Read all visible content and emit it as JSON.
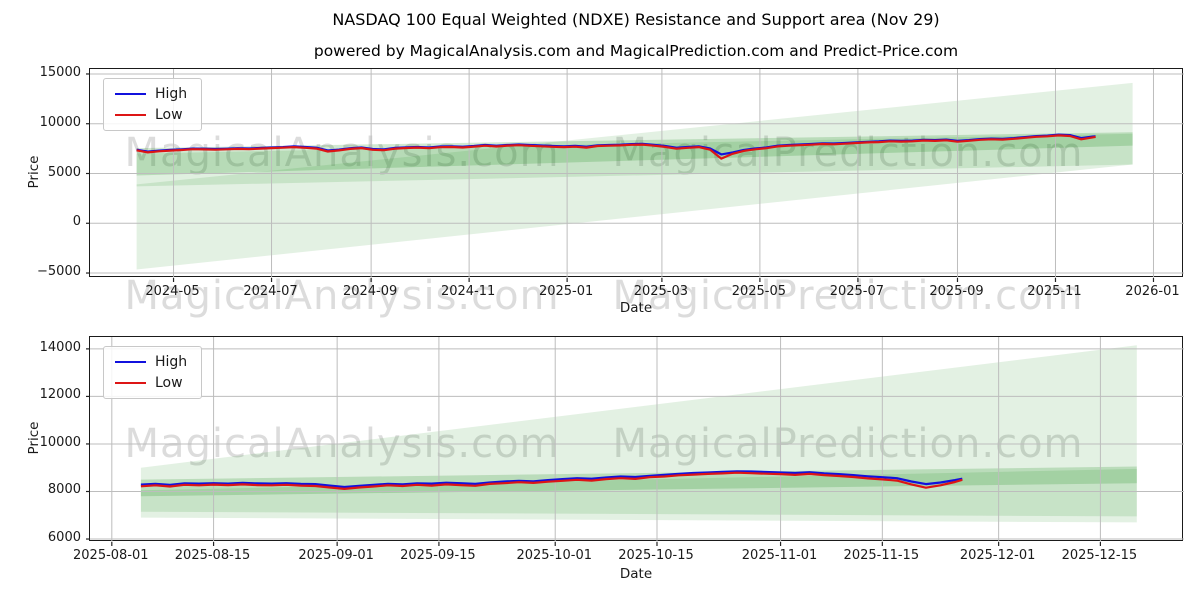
{
  "title": "NASDAQ 100 Equal Weighted (NDXE) Resistance and Support area (Nov 29)",
  "subtitle": "powered by MagicalAnalysis.com and MagicalPrediction.com and Predict-Price.com",
  "watermark": {
    "left": "MagicalAnalysis.com",
    "right": "MagicalPrediction.com"
  },
  "colors": {
    "high": "#1111dd",
    "low": "#dd1515",
    "band": "#008000",
    "grid": "#bdbdbd"
  },
  "chart_data": [
    {
      "type": "line",
      "name": "full-history",
      "xlabel": "Date",
      "ylabel": "Price",
      "legend": [
        "High",
        "Low"
      ],
      "legend_position": "upper left",
      "grid": true,
      "x_epoch": "2024-04-08",
      "xlim": [
        -29,
        652
      ],
      "ylim": [
        -5500,
        15500
      ],
      "xticks": [
        {
          "d": 23,
          "label": "2024-05"
        },
        {
          "d": 84,
          "label": "2024-07"
        },
        {
          "d": 146,
          "label": "2024-09"
        },
        {
          "d": 207,
          "label": "2024-11"
        },
        {
          "d": 268,
          "label": "2025-01"
        },
        {
          "d": 327,
          "label": "2025-03"
        },
        {
          "d": 388,
          "label": "2025-05"
        },
        {
          "d": 449,
          "label": "2025-07"
        },
        {
          "d": 511,
          "label": "2025-09"
        },
        {
          "d": 572,
          "label": "2025-11"
        },
        {
          "d": 633,
          "label": "2026-01"
        }
      ],
      "yticks": [
        {
          "v": -5000,
          "label": "−5000"
        },
        {
          "v": 0,
          "label": "0"
        },
        {
          "v": 5000,
          "label": "5000"
        },
        {
          "v": 10000,
          "label": "10000"
        },
        {
          "v": 15000,
          "label": "15000"
        }
      ],
      "bands": [
        {
          "name": "projection-fan",
          "alpha": 0.11,
          "pts": [
            [
              0,
              3900
            ],
            [
              620,
              14100
            ],
            [
              620,
              5900
            ],
            [
              0,
              -4650
            ]
          ]
        },
        {
          "name": "support-area",
          "alpha": 0.12,
          "pts": [
            [
              0,
              7000
            ],
            [
              620,
              9000
            ],
            [
              620,
              5900
            ],
            [
              0,
              3700
            ]
          ]
        },
        {
          "name": "resistance-band",
          "alpha": 0.18,
          "pts": [
            [
              0,
              7550
            ],
            [
              620,
              9150
            ],
            [
              620,
              7800
            ],
            [
              0,
              4800
            ]
          ]
        }
      ],
      "series": {
        "days": [
          0,
          7,
          14,
          21,
          28,
          35,
          42,
          49,
          56,
          63,
          70,
          77,
          84,
          91,
          98,
          105,
          112,
          119,
          126,
          133,
          140,
          147,
          154,
          161,
          168,
          175,
          182,
          189,
          196,
          203,
          210,
          217,
          224,
          231,
          238,
          245,
          252,
          259,
          266,
          273,
          280,
          287,
          294,
          301,
          308,
          315,
          322,
          329,
          336,
          343,
          350,
          357,
          364,
          371,
          378,
          385,
          392,
          399,
          406,
          413,
          420,
          427,
          434,
          441,
          448,
          455,
          462,
          469,
          476,
          483,
          490,
          497,
          504,
          511,
          518,
          525,
          532,
          539,
          546,
          553,
          560,
          567,
          574,
          581,
          588,
          595,
          597
        ],
        "high": [
          7390,
          7200,
          7300,
          7370,
          7430,
          7500,
          7490,
          7460,
          7490,
          7540,
          7510,
          7560,
          7610,
          7650,
          7720,
          7660,
          7590,
          7310,
          7400,
          7540,
          7610,
          7460,
          7420,
          7570,
          7630,
          7660,
          7610,
          7710,
          7730,
          7690,
          7760,
          7860,
          7790,
          7860,
          7910,
          7860,
          7810,
          7760,
          7730,
          7770,
          7690,
          7830,
          7860,
          7890,
          7950,
          7970,
          7880,
          7760,
          7590,
          7660,
          7730,
          7510,
          6920,
          7120,
          7360,
          7510,
          7610,
          7790,
          7860,
          7910,
          7960,
          8030,
          8010,
          8060,
          8130,
          8190,
          8230,
          8310,
          8290,
          8310,
          8390,
          8360,
          8410,
          8290,
          8360,
          8460,
          8510,
          8490,
          8560,
          8660,
          8760,
          8810,
          8910,
          8860,
          8560,
          8710,
          8740
        ],
        "low": [
          7330,
          7120,
          7230,
          7300,
          7360,
          7440,
          7420,
          7390,
          7430,
          7470,
          7440,
          7500,
          7550,
          7590,
          7650,
          7580,
          7500,
          7210,
          7320,
          7470,
          7550,
          7380,
          7340,
          7500,
          7560,
          7600,
          7540,
          7640,
          7660,
          7610,
          7690,
          7790,
          7710,
          7800,
          7840,
          7780,
          7730,
          7680,
          7650,
          7690,
          7600,
          7760,
          7790,
          7820,
          7880,
          7900,
          7790,
          7670,
          7490,
          7580,
          7650,
          7390,
          6500,
          6980,
          7270,
          7430,
          7540,
          7720,
          7790,
          7840,
          7890,
          7960,
          7930,
          7990,
          8060,
          8120,
          8160,
          8240,
          8210,
          8240,
          8320,
          8280,
          8340,
          8200,
          8290,
          8390,
          8440,
          8410,
          8490,
          8590,
          8690,
          8740,
          8830,
          8770,
          8440,
          8630,
          8680
        ]
      }
    },
    {
      "type": "line",
      "name": "recent-zoom",
      "xlabel": "Date",
      "ylabel": "Price",
      "legend": [
        "High",
        "Low"
      ],
      "legend_position": "upper left",
      "grid": true,
      "x_epoch": "2025-08-05",
      "xlim": [
        -7,
        143.5
      ],
      "ylim": [
        5875,
        14500
      ],
      "xticks": [
        {
          "d": -4,
          "label": "2025-08-01"
        },
        {
          "d": 10,
          "label": "2025-08-15"
        },
        {
          "d": 27,
          "label": "2025-09-01"
        },
        {
          "d": 41,
          "label": "2025-09-15"
        },
        {
          "d": 57,
          "label": "2025-10-01"
        },
        {
          "d": 71,
          "label": "2025-10-15"
        },
        {
          "d": 88,
          "label": "2025-11-01"
        },
        {
          "d": 102,
          "label": "2025-11-15"
        },
        {
          "d": 118,
          "label": "2025-12-01"
        },
        {
          "d": 132,
          "label": "2025-12-15"
        }
      ],
      "yticks": [
        {
          "v": 6000,
          "label": "6000"
        },
        {
          "v": 8000,
          "label": "8000"
        },
        {
          "v": 10000,
          "label": "10000"
        },
        {
          "v": 12000,
          "label": "12000"
        },
        {
          "v": 14000,
          "label": "14000"
        }
      ],
      "bands": [
        {
          "name": "projection-fan",
          "alpha": 0.11,
          "pts": [
            [
              0,
              9000
            ],
            [
              137,
              14150
            ],
            [
              137,
              6700
            ],
            [
              0,
              6900
            ]
          ]
        },
        {
          "name": "support-area",
          "alpha": 0.12,
          "pts": [
            [
              0,
              8050
            ],
            [
              137,
              8950
            ],
            [
              137,
              6950
            ],
            [
              0,
              7150
            ]
          ]
        },
        {
          "name": "resistance-band",
          "alpha": 0.18,
          "pts": [
            [
              0,
              8500
            ],
            [
              137,
              9050
            ],
            [
              137,
              8350
            ],
            [
              0,
              7800
            ]
          ]
        }
      ],
      "series": {
        "days": [
          0,
          2,
          4,
          6,
          8,
          10,
          12,
          14,
          16,
          18,
          20,
          22,
          24,
          26,
          28,
          30,
          32,
          34,
          36,
          38,
          40,
          42,
          44,
          46,
          48,
          50,
          52,
          54,
          56,
          58,
          60,
          62,
          64,
          66,
          68,
          70,
          72,
          74,
          76,
          78,
          80,
          82,
          84,
          86,
          88,
          90,
          92,
          94,
          96,
          98,
          100,
          102,
          104,
          106,
          108,
          110,
          112,
          113
        ],
        "high": [
          8290,
          8320,
          8280,
          8340,
          8330,
          8350,
          8330,
          8360,
          8340,
          8330,
          8350,
          8320,
          8310,
          8250,
          8190,
          8240,
          8280,
          8320,
          8300,
          8340,
          8330,
          8370,
          8350,
          8320,
          8380,
          8420,
          8450,
          8430,
          8480,
          8520,
          8560,
          8540,
          8590,
          8630,
          8610,
          8660,
          8700,
          8740,
          8780,
          8800,
          8830,
          8850,
          8840,
          8820,
          8800,
          8780,
          8810,
          8760,
          8730,
          8690,
          8640,
          8600,
          8560,
          8420,
          8310,
          8380,
          8480,
          8540
        ],
        "low": [
          8220,
          8260,
          8210,
          8280,
          8260,
          8290,
          8270,
          8300,
          8270,
          8260,
          8280,
          8250,
          8230,
          8170,
          8110,
          8170,
          8210,
          8260,
          8230,
          8280,
          8250,
          8300,
          8270,
          8240,
          8320,
          8350,
          8390,
          8360,
          8410,
          8450,
          8490,
          8460,
          8520,
          8560,
          8530,
          8600,
          8630,
          8680,
          8710,
          8740,
          8760,
          8790,
          8770,
          8750,
          8730,
          8700,
          8740,
          8690,
          8650,
          8610,
          8550,
          8510,
          8460,
          8300,
          8160,
          8260,
          8400,
          8490
        ]
      }
    }
  ]
}
